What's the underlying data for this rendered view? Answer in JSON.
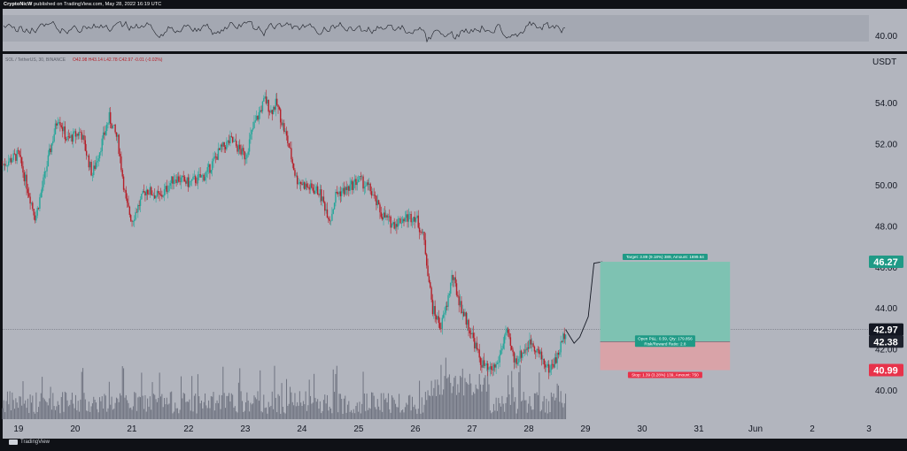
{
  "header": {
    "author": "CryptoNicW",
    "published_text": "published on TradingView.com, May 28, 2022 16:19 UTC"
  },
  "symbol_line": {
    "symbol": "SOL / TetherUS, 30, BINANCE",
    "ohlc": "O42.98 H43.14 L42.78 C42.97 -0.01 (-0.02%)"
  },
  "colors": {
    "background": "#b2b5be",
    "bull": "#26a69a",
    "bear": "#b5202a",
    "target_zone": "#7ec2b2",
    "stop_zone": "#d9a3a8",
    "target_badge": "#1f9a86",
    "stop_badge": "#e8324a",
    "price_badge": "#131722",
    "indicator_band": "#a4a8b2"
  },
  "chart_data": [
    {
      "type": "line",
      "title": "",
      "role": "oscillator pane",
      "y_tick_labels": [
        "40.00"
      ],
      "note": "unlabeled oscillator line with shaded band"
    },
    {
      "type": "candlestick",
      "title": "SOL / TetherUS, 30, BINANCE",
      "unit": "USDT",
      "x_tick_labels": [
        "19",
        "20",
        "21",
        "22",
        "23",
        "24",
        "25",
        "26",
        "27",
        "28",
        "29",
        "30",
        "31",
        "Jun",
        "2",
        "3"
      ],
      "y_tick_labels": [
        "40.00",
        "42.00",
        "44.00",
        "46.00",
        "48.00",
        "50.00",
        "52.00",
        "54.00"
      ],
      "ylim": [
        38.6,
        56.4
      ],
      "x_range_days": [
        18.72,
        34.0
      ],
      "price_path": [
        [
          18.72,
          51.0
        ],
        [
          19.0,
          51.5
        ],
        [
          19.3,
          48.4
        ],
        [
          19.55,
          51.6
        ],
        [
          19.7,
          53.4
        ],
        [
          19.85,
          52.2
        ],
        [
          20.1,
          52.6
        ],
        [
          20.3,
          50.5
        ],
        [
          20.6,
          53.3
        ],
        [
          20.75,
          52.2
        ],
        [
          20.9,
          49.1
        ],
        [
          21.0,
          48.3
        ],
        [
          21.25,
          49.8
        ],
        [
          21.5,
          49.4
        ],
        [
          21.75,
          50.4
        ],
        [
          22.0,
          50.1
        ],
        [
          22.3,
          50.5
        ],
        [
          22.55,
          51.7
        ],
        [
          22.75,
          52.2
        ],
        [
          23.0,
          51.4
        ],
        [
          23.15,
          52.9
        ],
        [
          23.35,
          54.2
        ],
        [
          23.45,
          53.6
        ],
        [
          23.55,
          54.0
        ],
        [
          23.75,
          52.1
        ],
        [
          23.9,
          50.3
        ],
        [
          24.1,
          49.9
        ],
        [
          24.3,
          49.7
        ],
        [
          24.5,
          48.3
        ],
        [
          24.6,
          49.6
        ],
        [
          24.8,
          49.8
        ],
        [
          25.0,
          50.3
        ],
        [
          25.2,
          49.8
        ],
        [
          25.4,
          48.6
        ],
        [
          25.6,
          48.1
        ],
        [
          25.8,
          48.4
        ],
        [
          26.0,
          48.5
        ],
        [
          26.15,
          47.4
        ],
        [
          26.3,
          44.0
        ],
        [
          26.45,
          43.1
        ],
        [
          26.55,
          44.1
        ],
        [
          26.65,
          45.6
        ],
        [
          26.8,
          44.1
        ],
        [
          27.0,
          42.7
        ],
        [
          27.15,
          41.4
        ],
        [
          27.3,
          40.9
        ],
        [
          27.45,
          41.3
        ],
        [
          27.6,
          42.9
        ],
        [
          27.75,
          41.4
        ],
        [
          27.9,
          41.9
        ],
        [
          28.05,
          42.4
        ],
        [
          28.2,
          41.7
        ],
        [
          28.35,
          41.0
        ],
        [
          28.5,
          41.6
        ],
        [
          28.65,
          42.97
        ]
      ],
      "projection_path": [
        [
          28.65,
          42.97
        ],
        [
          28.8,
          42.3
        ],
        [
          28.9,
          42.6
        ],
        [
          29.05,
          43.6
        ],
        [
          29.15,
          46.2
        ],
        [
          29.3,
          46.27
        ]
      ],
      "volume_note": "volume histogram along bottom of price pane",
      "horizontal_line": 42.97,
      "position_tool": {
        "type": "long",
        "x_start": 29.26,
        "x_end": 31.55,
        "entry": 42.38,
        "target": 46.27,
        "stop": 40.99,
        "target_label": "Target: 3.89 (9.18%) 389, Amount: 1699.64",
        "stop_label": "Stop: 1.39 (3.28%) 139, Amount: 750",
        "open_pnl_label": "Open P&L: 0.59, Qty: 179.856",
        "risk_reward_label": "Risk/Reward Ratio: 2.8"
      },
      "price_badges": [
        {
          "value": "46.27",
          "kind": "target"
        },
        {
          "value": "42.97",
          "kind": "last"
        },
        {
          "value": "42.38",
          "kind": "entry"
        },
        {
          "value": "40.99",
          "kind": "stop"
        }
      ]
    }
  ],
  "footer": {
    "brand": "TradingView"
  }
}
